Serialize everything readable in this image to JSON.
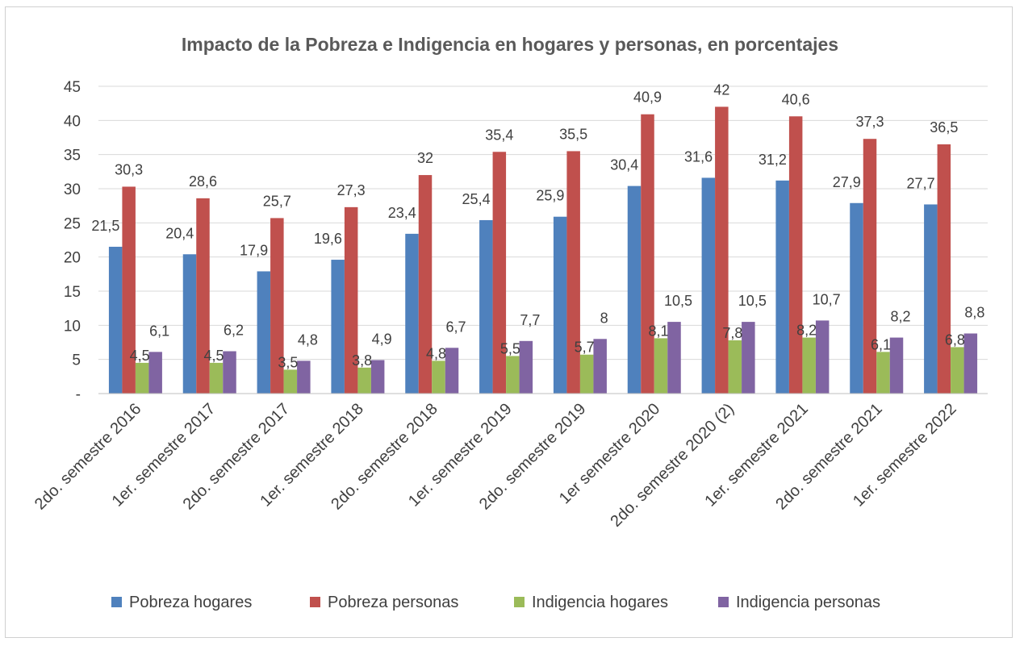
{
  "chart_data": {
    "type": "bar",
    "title": "Impacto de la Pobreza e Indigencia en hogares y personas, en porcentajes",
    "xlabel": "",
    "ylabel": "",
    "ylim": [
      0,
      45
    ],
    "yticks": [
      0,
      5,
      10,
      15,
      20,
      25,
      30,
      35,
      40,
      45
    ],
    "ytick_labels": [
      "-",
      "5",
      "10",
      "15",
      "20",
      "25",
      "30",
      "35",
      "40",
      "45"
    ],
    "grid": true,
    "legend_position": "bottom",
    "categories": [
      "2do. semestre 2016",
      "1er. semestre 2017",
      "2do. semestre 2017",
      "1er. semestre 2018",
      "2do. semestre 2018",
      "1er. semestre 2019",
      "2do. semestre 2019",
      "1er semestre 2020",
      "2do. semestre 2020 (2)",
      "1er. semestre 2021",
      "2do. semestre 2021",
      "1er. semestre 2022"
    ],
    "series": [
      {
        "name": "Pobreza hogares",
        "color": "#4f81bd",
        "values": [
          21.5,
          20.4,
          17.9,
          19.6,
          23.4,
          25.4,
          25.9,
          30.4,
          31.6,
          31.2,
          27.9,
          27.7
        ],
        "labels": [
          "21,5",
          "20,4",
          "17,9",
          "19,6",
          "23,4",
          "25,4",
          "25,9",
          "30,4",
          "31,6",
          "31,2",
          "27,9",
          "27,7"
        ]
      },
      {
        "name": "Pobreza personas",
        "color": "#c0504d",
        "values": [
          30.3,
          28.6,
          25.7,
          27.3,
          32,
          35.4,
          35.5,
          40.9,
          42,
          40.6,
          37.3,
          36.5
        ],
        "labels": [
          "30,3",
          "28,6",
          "25,7",
          "27,3",
          "32",
          "35,4",
          "35,5",
          "40,9",
          "42",
          "40,6",
          "37,3",
          "36,5"
        ]
      },
      {
        "name": "Indigencia hogares",
        "color": "#9bbb59",
        "values": [
          4.5,
          4.5,
          3.5,
          3.8,
          4.8,
          5.5,
          5.7,
          8.1,
          7.8,
          8.2,
          6.1,
          6.8
        ],
        "labels": [
          "4,5",
          "4,5",
          "3,5",
          "3,8",
          "4,8",
          "5,5",
          "5,7",
          "8,1",
          "7,8",
          "8,2",
          "6,1",
          "6,8"
        ]
      },
      {
        "name": "Indigencia personas",
        "color": "#8064a2",
        "values": [
          6.1,
          6.2,
          4.8,
          4.9,
          6.7,
          7.7,
          8,
          10.5,
          10.5,
          10.7,
          8.2,
          8.8
        ],
        "labels": [
          "6,1",
          "6,2",
          "4,8",
          "4,9",
          "6,7",
          "7,7",
          "8",
          "10,5",
          "10,5",
          "10,7",
          "8,2",
          "8,8"
        ]
      }
    ]
  }
}
